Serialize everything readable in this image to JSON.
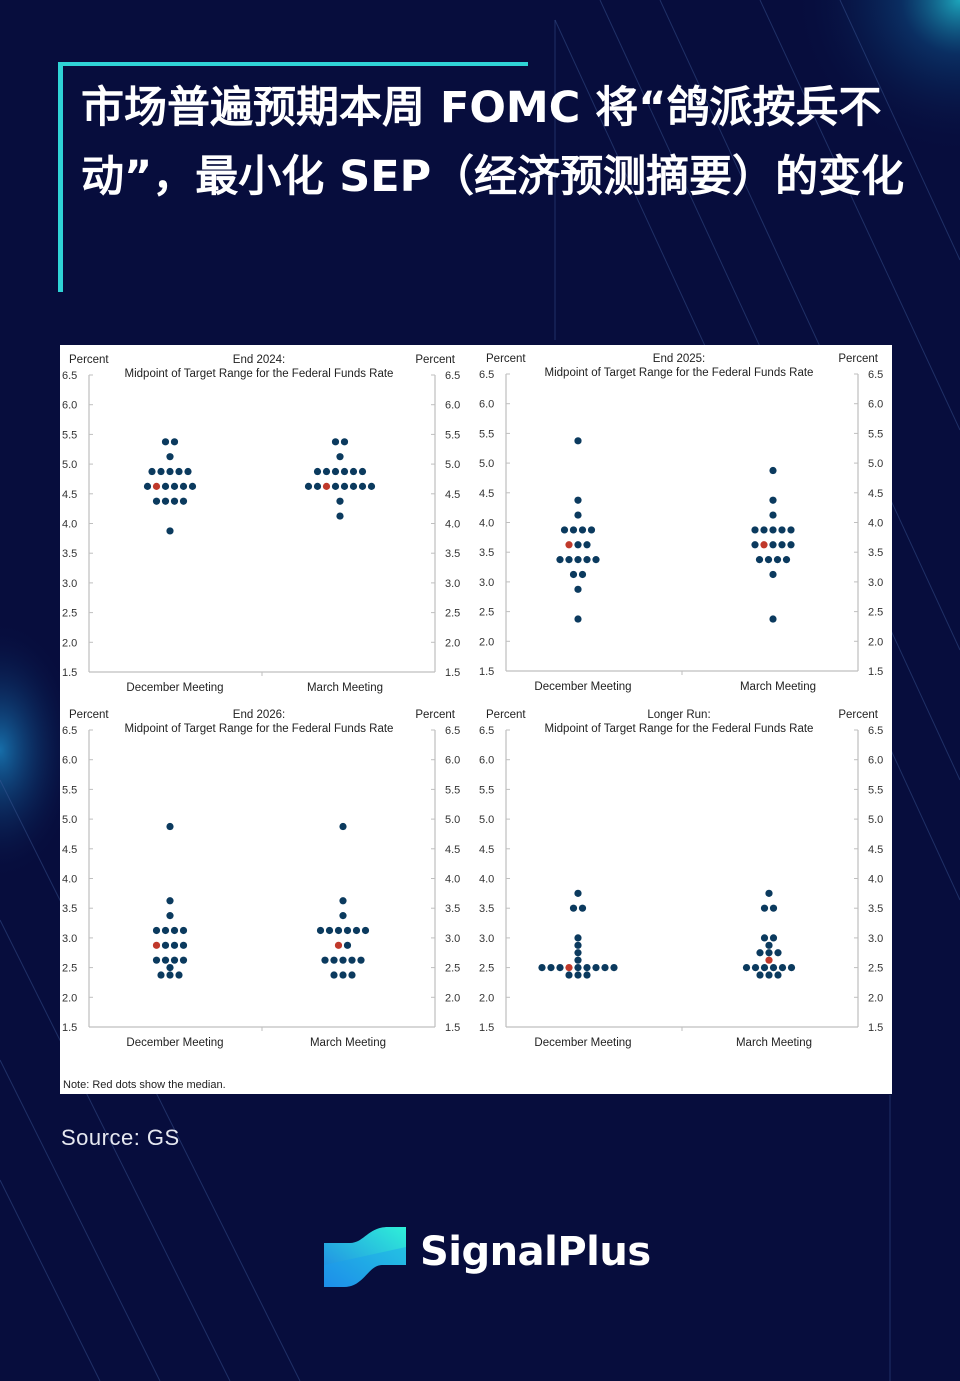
{
  "header": {
    "title": "市场普遍预期本周 FOMC 将“鸽派按兵不动”，最小化 SEP（经济预测摘要）的变化"
  },
  "source": "Source: GS",
  "brand": {
    "name": "SignalPlus",
    "colors": {
      "accent": "#2fd3d6",
      "background": "#070d3d"
    }
  },
  "note": "Note: Red dots show the median.",
  "colors": {
    "dot": "#0b3a5e",
    "median": "#c0392b",
    "axis": "#bfbfbf"
  },
  "chart_data": [
    {
      "type": "scatter",
      "title": "End 2024:",
      "subtitle": "Midpoint of Target Range for the Federal Funds Rate",
      "ylabel_left": "Percent",
      "ylabel_right": "Percent",
      "ylim": [
        1.5,
        6.5
      ],
      "yticks": [
        "6.5",
        "6.0",
        "5.5",
        "5.0",
        "4.5",
        "4.0",
        "3.5",
        "3.0",
        "2.5",
        "2.0",
        "1.5"
      ],
      "categories": [
        "December Meeting",
        "March Meeting"
      ],
      "series": [
        {
          "category": "December Meeting",
          "median": 4.625,
          "rows": [
            {
              "y": 5.375,
              "n": 2
            },
            {
              "y": 5.125,
              "n": 1
            },
            {
              "y": 4.875,
              "n": 5
            },
            {
              "y": 4.625,
              "n": 6
            },
            {
              "y": 4.375,
              "n": 4
            },
            {
              "y": 3.875,
              "n": 1
            }
          ]
        },
        {
          "category": "March Meeting",
          "median": 4.625,
          "rows": [
            {
              "y": 5.375,
              "n": 2
            },
            {
              "y": 5.125,
              "n": 1
            },
            {
              "y": 4.875,
              "n": 6
            },
            {
              "y": 4.625,
              "n": 8
            },
            {
              "y": 4.375,
              "n": 1
            },
            {
              "y": 4.125,
              "n": 1
            }
          ]
        }
      ]
    },
    {
      "type": "scatter",
      "title": "End 2025:",
      "subtitle": "Midpoint of Target Range for the Federal Funds Rate",
      "ylabel_left": "Percent",
      "ylabel_right": "Percent",
      "ylim": [
        1.5,
        6.5
      ],
      "yticks": [
        "6.5",
        "6.0",
        "5.5",
        "5.0",
        "4.5",
        "4.0",
        "3.5",
        "3.0",
        "2.5",
        "2.0",
        "1.5"
      ],
      "categories": [
        "December Meeting",
        "March Meeting"
      ],
      "series": [
        {
          "category": "December Meeting",
          "median": 3.625,
          "rows": [
            {
              "y": 5.375,
              "n": 1
            },
            {
              "y": 4.375,
              "n": 1
            },
            {
              "y": 4.125,
              "n": 1
            },
            {
              "y": 3.875,
              "n": 4
            },
            {
              "y": 3.625,
              "n": 3
            },
            {
              "y": 3.375,
              "n": 5
            },
            {
              "y": 3.125,
              "n": 2
            },
            {
              "y": 2.875,
              "n": 1
            },
            {
              "y": 2.375,
              "n": 1
            }
          ]
        },
        {
          "category": "March Meeting",
          "median": 3.625,
          "rows": [
            {
              "y": 4.875,
              "n": 1
            },
            {
              "y": 4.375,
              "n": 1
            },
            {
              "y": 4.125,
              "n": 1
            },
            {
              "y": 3.875,
              "n": 5
            },
            {
              "y": 3.625,
              "n": 5
            },
            {
              "y": 3.375,
              "n": 4
            },
            {
              "y": 3.125,
              "n": 1
            },
            {
              "y": 2.375,
              "n": 1
            }
          ]
        }
      ]
    },
    {
      "type": "scatter",
      "title": "End 2026:",
      "subtitle": "Midpoint of Target Range for the Federal Funds Rate",
      "ylabel_left": "Percent",
      "ylabel_right": "Percent",
      "ylim": [
        1.5,
        6.5
      ],
      "yticks": [
        "6.5",
        "6.0",
        "5.5",
        "5.0",
        "4.5",
        "4.0",
        "3.5",
        "3.0",
        "2.5",
        "2.0",
        "1.5"
      ],
      "categories": [
        "December Meeting",
        "March Meeting"
      ],
      "series": [
        {
          "category": "December Meeting",
          "median": 2.875,
          "rows": [
            {
              "y": 4.875,
              "n": 1
            },
            {
              "y": 3.625,
              "n": 1
            },
            {
              "y": 3.375,
              "n": 1
            },
            {
              "y": 3.125,
              "n": 4
            },
            {
              "y": 2.875,
              "n": 4
            },
            {
              "y": 2.625,
              "n": 4
            },
            {
              "y": 2.5,
              "n": 1
            },
            {
              "y": 2.375,
              "n": 3
            }
          ]
        },
        {
          "category": "March Meeting",
          "median": 2.875,
          "rows": [
            {
              "y": 4.875,
              "n": 1
            },
            {
              "y": 3.625,
              "n": 1
            },
            {
              "y": 3.375,
              "n": 1
            },
            {
              "y": 3.125,
              "n": 6
            },
            {
              "y": 2.875,
              "n": 2
            },
            {
              "y": 2.625,
              "n": 5
            },
            {
              "y": 2.375,
              "n": 3
            }
          ]
        }
      ]
    },
    {
      "type": "scatter",
      "title": "Longer Run:",
      "subtitle": "Midpoint of Target Range for the Federal Funds Rate",
      "ylabel_left": "Percent",
      "ylabel_right": "Percent",
      "ylim": [
        1.5,
        6.5
      ],
      "yticks": [
        "6.5",
        "6.0",
        "5.5",
        "5.0",
        "4.5",
        "4.0",
        "3.5",
        "3.0",
        "2.5",
        "2.0",
        "1.5"
      ],
      "categories": [
        "December Meeting",
        "March Meeting"
      ],
      "series": [
        {
          "category": "December Meeting",
          "median": 2.5,
          "rows": [
            {
              "y": 3.75,
              "n": 1
            },
            {
              "y": 3.5,
              "n": 2
            },
            {
              "y": 3.0,
              "n": 1
            },
            {
              "y": 2.875,
              "n": 1
            },
            {
              "y": 2.75,
              "n": 1
            },
            {
              "y": 2.625,
              "n": 1
            },
            {
              "y": 2.5,
              "n": 9
            },
            {
              "y": 2.375,
              "n": 3
            }
          ]
        },
        {
          "category": "March Meeting",
          "median": 2.625,
          "rows": [
            {
              "y": 3.75,
              "n": 1
            },
            {
              "y": 3.5,
              "n": 2
            },
            {
              "y": 3.0,
              "n": 2
            },
            {
              "y": 2.875,
              "n": 1
            },
            {
              "y": 2.75,
              "n": 3
            },
            {
              "y": 2.625,
              "n": 1
            },
            {
              "y": 2.5,
              "n": 6
            },
            {
              "y": 2.375,
              "n": 3
            }
          ]
        }
      ]
    }
  ]
}
